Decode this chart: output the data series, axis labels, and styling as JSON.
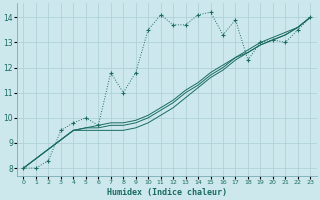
{
  "xlabel": "Humidex (Indice chaleur)",
  "bg_color": "#cce8ec",
  "line_color": "#1a6b62",
  "grid_color": "#aacdd4",
  "xlim": [
    -0.5,
    23.5
  ],
  "ylim": [
    7.7,
    14.55
  ],
  "xticks": [
    0,
    1,
    2,
    3,
    4,
    5,
    6,
    7,
    8,
    9,
    10,
    11,
    12,
    13,
    14,
    15,
    16,
    17,
    18,
    19,
    20,
    21,
    22,
    23
  ],
  "yticks": [
    8,
    9,
    10,
    11,
    12,
    13,
    14
  ],
  "main_x": [
    0,
    1,
    2,
    3,
    4,
    5,
    6,
    7,
    8,
    9,
    10,
    11,
    12,
    13,
    14,
    15,
    16,
    17,
    18,
    19,
    20,
    21,
    22,
    23
  ],
  "main_y": [
    8.0,
    8.0,
    8.3,
    9.5,
    9.8,
    10.0,
    9.7,
    11.8,
    11.0,
    11.8,
    13.5,
    14.1,
    13.7,
    13.7,
    14.1,
    14.2,
    13.3,
    13.9,
    12.3,
    13.0,
    13.1,
    13.0,
    13.5,
    14.0
  ],
  "line2_x": [
    0,
    4,
    5,
    6,
    7,
    8,
    9,
    10,
    11,
    12,
    13,
    14,
    15,
    16,
    17,
    18,
    19,
    20,
    21,
    22,
    23
  ],
  "line2_y": [
    8.0,
    9.5,
    9.5,
    9.5,
    9.5,
    9.5,
    9.6,
    9.8,
    10.1,
    10.4,
    10.8,
    11.2,
    11.6,
    11.9,
    12.3,
    12.6,
    12.9,
    13.1,
    13.3,
    13.6,
    14.0
  ],
  "line3_x": [
    0,
    4,
    5,
    6,
    7,
    8,
    9,
    10,
    11,
    12,
    13,
    14,
    15,
    16,
    17,
    18,
    19,
    20,
    21,
    22,
    23
  ],
  "line3_y": [
    8.0,
    9.5,
    9.6,
    9.6,
    9.7,
    9.7,
    9.8,
    10.0,
    10.3,
    10.6,
    11.0,
    11.3,
    11.7,
    12.0,
    12.4,
    12.6,
    12.9,
    13.1,
    13.3,
    13.6,
    14.0
  ],
  "line4_x": [
    0,
    4,
    5,
    6,
    7,
    8,
    9,
    10,
    11,
    12,
    13,
    14,
    15,
    16,
    17,
    18,
    19,
    20,
    21,
    22,
    23
  ],
  "line4_y": [
    8.0,
    9.5,
    9.6,
    9.7,
    9.8,
    9.8,
    9.9,
    10.1,
    10.4,
    10.7,
    11.1,
    11.4,
    11.8,
    12.1,
    12.4,
    12.7,
    13.0,
    13.2,
    13.4,
    13.6,
    14.0
  ]
}
